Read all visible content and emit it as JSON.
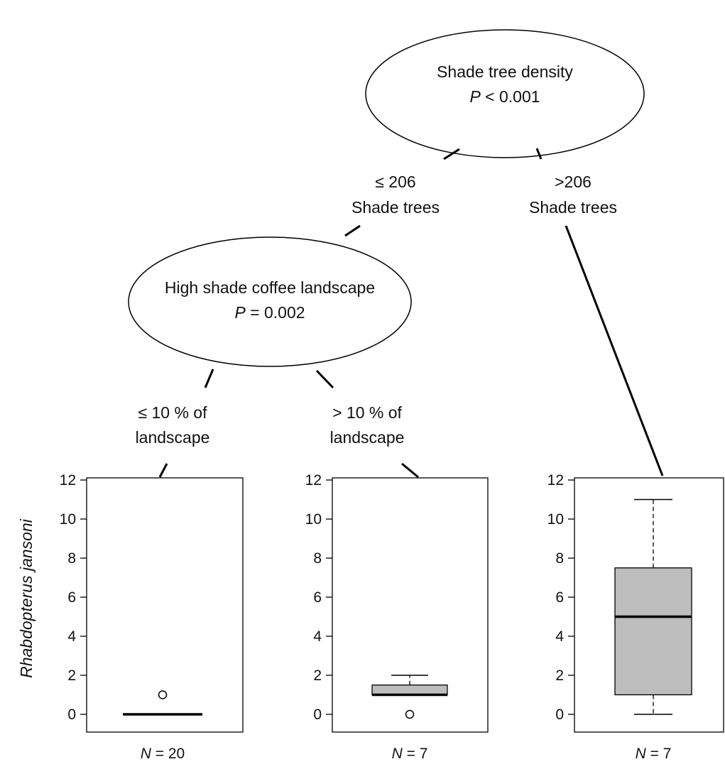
{
  "nodes": [
    {
      "id": "root",
      "label": "Shade tree density",
      "p_symbol": "P",
      "p_rest": " < 0.001"
    },
    {
      "id": "inner",
      "label": "High shade coffee landscape",
      "p_symbol": "P",
      "p_rest": " = 0.002"
    }
  ],
  "edges": [
    {
      "line1": "≤ 206",
      "line2": "Shade trees"
    },
    {
      "line1": ">206",
      "line2": "Shade trees"
    },
    {
      "line1": "≤ 10 % of",
      "line2": "landscape"
    },
    {
      "line1": "> 10 % of",
      "line2": "landscape"
    }
  ],
  "chart_data": [
    {
      "type": "box",
      "ylabel": "Rhabdopterus jansoni",
      "ylim": [
        0,
        12
      ],
      "yticks": [
        "0",
        "2",
        "4",
        "6",
        "8",
        "10",
        "12"
      ],
      "n_symbol": "N",
      "n_rest": " = 20",
      "box": {
        "min": 0,
        "q1": 0,
        "median": 0,
        "q3": 0,
        "max": 0
      },
      "outliers": [
        1
      ]
    },
    {
      "type": "box",
      "ylabel": "",
      "ylim": [
        0,
        12
      ],
      "yticks": [
        "0",
        "2",
        "4",
        "6",
        "8",
        "10",
        "12"
      ],
      "n_symbol": "N",
      "n_rest": " = 7",
      "box": {
        "min": 1,
        "q1": 1,
        "median": 1,
        "q3": 1.5,
        "max": 2
      },
      "outliers": [
        0
      ]
    },
    {
      "type": "box",
      "ylabel": "",
      "ylim": [
        0,
        12
      ],
      "yticks": [
        "0",
        "2",
        "4",
        "6",
        "8",
        "10",
        "12"
      ],
      "n_symbol": "N",
      "n_rest": " = 7",
      "box": {
        "min": 0,
        "q1": 1,
        "median": 5,
        "q3": 7.5,
        "max": 11
      },
      "outliers": []
    }
  ],
  "colors": {
    "box_fill": "#bdbdbd",
    "stroke": "#000000"
  }
}
